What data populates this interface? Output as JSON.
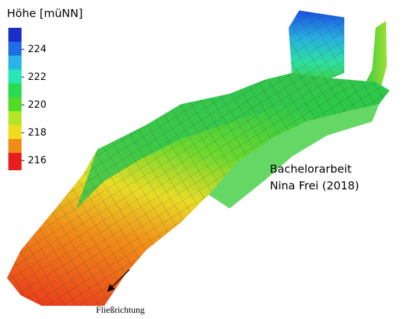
{
  "legend": {
    "title": "Höhe [müNN]",
    "ticks": [
      224,
      222,
      220,
      218,
      216
    ]
  },
  "annotations": {
    "credit_line1": "Bachelorarbeit",
    "credit_line2": "Nina Frei (2018)",
    "flow_direction": "Fließrichtung"
  }
}
